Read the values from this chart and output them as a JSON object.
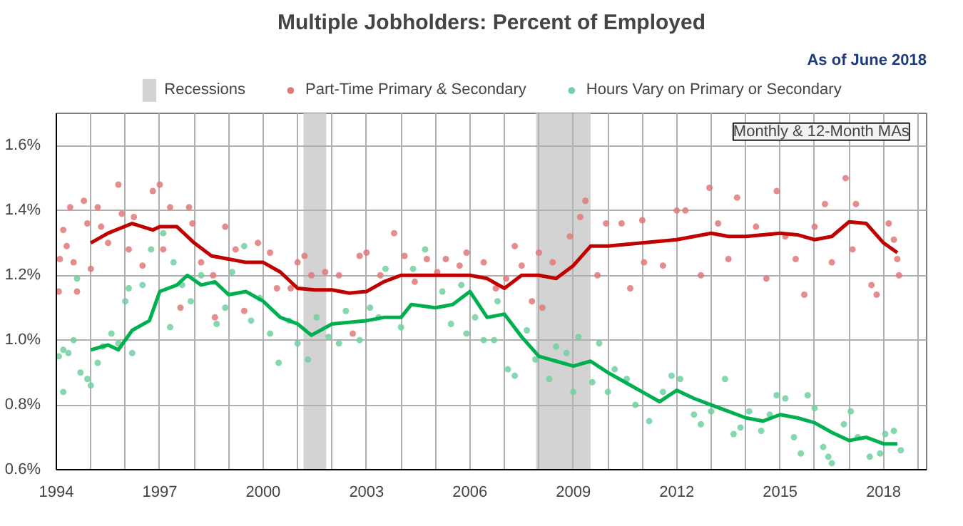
{
  "chart_data": {
    "type": "scatter",
    "title": "Multiple Jobholders: Percent of Employed",
    "annotations": [
      "As of June 2018",
      "Monthly & 12-Month MAs"
    ],
    "xlim": [
      1994,
      2019.25
    ],
    "ylim": [
      0.6,
      1.7
    ],
    "xticks": [
      1994,
      {
        "value": 1995,
        "label": null
      },
      {
        "value": 1996,
        "label": null
      },
      1997,
      {
        "value": 1998,
        "label": null
      },
      {
        "value": 1999,
        "label": null
      },
      2000,
      {
        "value": 2001,
        "label": null
      },
      {
        "value": 2002,
        "label": null
      },
      2003,
      {
        "value": 2004,
        "label": null
      },
      {
        "value": 2005,
        "label": null
      },
      2006,
      {
        "value": 2007,
        "label": null
      },
      {
        "value": 2008,
        "label": null
      },
      2009,
      {
        "value": 2010,
        "label": null
      },
      {
        "value": 2011,
        "label": null
      },
      2012,
      {
        "value": 2013,
        "label": null
      },
      {
        "value": 2014,
        "label": null
      },
      2015,
      {
        "value": 2016,
        "label": null
      },
      {
        "value": 2017,
        "label": null
      },
      2018,
      {
        "value": 2019,
        "label": null
      }
    ],
    "yticks": [
      {
        "value": 0.6,
        "label": "0.6%"
      },
      {
        "value": 0.8,
        "label": "0.8%"
      },
      {
        "value": 1.0,
        "label": "1.0%"
      },
      {
        "value": 1.2,
        "label": "1.2%"
      },
      {
        "value": 1.4,
        "label": "1.4%"
      },
      {
        "value": 1.6,
        "label": "1.6%"
      }
    ],
    "grid": true,
    "legend": "top",
    "bands": [
      {
        "axis": "x",
        "from": 2001.17,
        "to": 2001.83,
        "label": "Recessions",
        "color": "#d3d3d3"
      },
      {
        "axis": "x",
        "from": 2007.92,
        "to": 2009.5,
        "label": null,
        "color": "#d3d3d3"
      }
    ],
    "series": [
      {
        "type": "scatter",
        "marker": "circle",
        "name": "Part-Time Primary & Secondary",
        "color": "#e07878",
        "x": [
          1994.07,
          1994.1,
          1994.2,
          1994.3,
          1994.4,
          1994.5,
          1994.6,
          1994.8,
          1994.9,
          1995.0,
          1995.2,
          1995.3,
          1995.5,
          1995.8,
          1995.9,
          1996.1,
          1996.25,
          1996.5,
          1996.8,
          1997.0,
          1997.1,
          1997.3,
          1997.6,
          1997.85,
          1997.95,
          1998.2,
          1998.55,
          1998.6,
          1998.9,
          1999.2,
          1999.45,
          1999.85,
          2000.2,
          2000.4,
          2000.8,
          2001.0,
          2001.2,
          2001.4,
          2001.8,
          2002.2,
          2002.6,
          2002.8,
          2003.0,
          2003.4,
          2003.8,
          2004.1,
          2004.4,
          2004.75,
          2005.05,
          2005.3,
          2005.7,
          2005.9,
          2006.4,
          2006.75,
          2007.05,
          2007.3,
          2007.5,
          2007.8,
          2008.0,
          2008.1,
          2008.4,
          2008.9,
          2009.2,
          2009.35,
          2009.7,
          2009.95,
          2010.4,
          2010.65,
          2011.0,
          2011.05,
          2011.6,
          2012.0,
          2012.25,
          2012.7,
          2012.95,
          2013.2,
          2013.5,
          2013.75,
          2014.3,
          2014.6,
          2014.9,
          2015.15,
          2015.45,
          2015.7,
          2016.0,
          2016.3,
          2016.5,
          2016.9,
          2017.1,
          2017.2,
          2017.65,
          2017.8,
          2018.15,
          2018.3,
          2018.4,
          2018.45
        ],
        "values": [
          1.15,
          1.25,
          1.34,
          1.29,
          1.41,
          1.24,
          1.15,
          1.43,
          1.36,
          1.22,
          1.41,
          1.35,
          1.3,
          1.48,
          1.39,
          1.28,
          1.38,
          1.23,
          1.46,
          1.48,
          1.28,
          1.41,
          1.1,
          1.41,
          1.36,
          1.24,
          1.2,
          1.07,
          1.35,
          1.28,
          1.09,
          1.3,
          1.27,
          1.16,
          1.16,
          1.24,
          1.26,
          1.2,
          1.21,
          1.2,
          1.02,
          1.26,
          1.27,
          1.2,
          1.33,
          1.26,
          1.18,
          1.25,
          1.21,
          1.25,
          1.23,
          1.27,
          1.24,
          1.16,
          1.19,
          1.29,
          1.23,
          1.12,
          1.27,
          1.1,
          1.24,
          1.32,
          1.38,
          1.43,
          1.2,
          1.36,
          1.36,
          1.16,
          1.37,
          1.24,
          1.23,
          1.4,
          1.4,
          1.2,
          1.47,
          1.36,
          1.25,
          1.44,
          1.35,
          1.19,
          1.46,
          1.32,
          1.25,
          1.14,
          1.35,
          1.42,
          1.24,
          1.5,
          1.28,
          1.42,
          1.17,
          1.14,
          1.36,
          1.31,
          1.25,
          1.2
        ]
      },
      {
        "type": "line",
        "marker": "none",
        "color": "#c00000",
        "x": [
          1995.0,
          1995.5,
          1996.2,
          1996.8,
          1997.0,
          1997.5,
          1998.0,
          1998.5,
          1999.0,
          1999.5,
          2000.0,
          2000.5,
          2001.0,
          2001.5,
          2002.0,
          2002.5,
          2003.0,
          2003.5,
          2004.0,
          2005.0,
          2006.0,
          2006.5,
          2007.0,
          2007.5,
          2008.0,
          2008.5,
          2009.0,
          2009.5,
          2010.0,
          2011.0,
          2012.0,
          2012.5,
          2013.0,
          2013.5,
          2014.0,
          2014.5,
          2015.0,
          2015.5,
          2016.0,
          2016.5,
          2017.0,
          2017.5,
          2018.0,
          2018.4
        ],
        "values": [
          1.3,
          1.33,
          1.36,
          1.34,
          1.35,
          1.35,
          1.3,
          1.26,
          1.25,
          1.24,
          1.24,
          1.21,
          1.16,
          1.155,
          1.155,
          1.145,
          1.15,
          1.18,
          1.2,
          1.2,
          1.2,
          1.19,
          1.16,
          1.2,
          1.2,
          1.19,
          1.23,
          1.29,
          1.29,
          1.3,
          1.31,
          1.32,
          1.33,
          1.32,
          1.32,
          1.325,
          1.33,
          1.325,
          1.31,
          1.32,
          1.365,
          1.36,
          1.3,
          1.27
        ]
      },
      {
        "type": "scatter",
        "marker": "circle",
        "name": "Hours Vary on Primary or Secondary",
        "color": "#70d0a0",
        "x": [
          1994.07,
          1994.2,
          1994.2,
          1994.35,
          1994.5,
          1994.6,
          1994.7,
          1994.9,
          1995.0,
          1995.2,
          1995.35,
          1995.6,
          1995.8,
          1996.0,
          1996.1,
          1996.2,
          1996.5,
          1996.75,
          1997.1,
          1997.3,
          1997.4,
          1997.65,
          1997.9,
          1998.2,
          1998.65,
          1998.9,
          1999.1,
          1999.45,
          1999.65,
          1999.9,
          2000.2,
          2000.45,
          2000.75,
          2001.0,
          2001.3,
          2001.55,
          2001.9,
          2002.2,
          2002.4,
          2002.8,
          2003.1,
          2003.35,
          2003.55,
          2004.0,
          2004.35,
          2004.7,
          2005.2,
          2005.45,
          2005.75,
          2005.9,
          2006.15,
          2006.4,
          2006.7,
          2006.8,
          2007.1,
          2007.3,
          2007.65,
          2007.9,
          2008.3,
          2008.5,
          2008.8,
          2009.0,
          2009.15,
          2009.55,
          2009.75,
          2010.0,
          2010.2,
          2010.55,
          2010.8,
          2011.2,
          2011.6,
          2011.85,
          2012.1,
          2012.5,
          2012.7,
          2013.0,
          2013.4,
          2013.65,
          2013.85,
          2014.1,
          2014.45,
          2014.7,
          2014.9,
          2015.15,
          2015.4,
          2015.6,
          2015.8,
          2016.0,
          2016.25,
          2016.4,
          2016.5,
          2016.85,
          2017.05,
          2017.25,
          2017.6,
          2017.9,
          2018.05,
          2018.3,
          2018.5
        ],
        "values": [
          0.95,
          0.97,
          0.84,
          0.96,
          1.0,
          1.19,
          0.9,
          0.88,
          0.86,
          0.93,
          0.98,
          1.02,
          0.99,
          1.12,
          1.16,
          0.96,
          1.17,
          1.28,
          1.33,
          1.04,
          1.24,
          1.17,
          1.12,
          1.2,
          1.05,
          1.1,
          1.21,
          1.29,
          1.06,
          1.13,
          1.02,
          0.93,
          1.06,
          0.99,
          0.94,
          1.07,
          1.01,
          0.99,
          1.09,
          1.0,
          1.1,
          1.07,
          1.22,
          1.04,
          1.22,
          1.28,
          1.15,
          1.05,
          1.17,
          1.02,
          1.07,
          1.0,
          1.0,
          1.12,
          0.91,
          0.89,
          1.03,
          0.94,
          0.88,
          0.98,
          0.96,
          0.84,
          1.01,
          0.87,
          0.99,
          0.84,
          0.91,
          0.88,
          0.8,
          0.75,
          0.84,
          0.89,
          0.88,
          0.77,
          0.74,
          0.78,
          0.88,
          0.71,
          0.73,
          0.78,
          0.72,
          0.77,
          0.83,
          0.82,
          0.7,
          0.65,
          0.83,
          0.79,
          0.67,
          0.64,
          0.62,
          0.74,
          0.78,
          0.7,
          0.64,
          0.65,
          0.71,
          0.72,
          0.66
        ]
      },
      {
        "type": "line",
        "marker": "none",
        "color": "#00b050",
        "x": [
          1995.0,
          1995.5,
          1995.8,
          1996.2,
          1996.7,
          1997.0,
          1997.5,
          1997.8,
          1998.2,
          1998.6,
          1999.0,
          1999.5,
          2000.0,
          2000.5,
          2001.0,
          2001.4,
          2002.0,
          2003.0,
          2003.5,
          2004.0,
          2004.3,
          2005.0,
          2005.5,
          2006.0,
          2006.5,
          2007.0,
          2007.5,
          2008.0,
          2008.5,
          2009.0,
          2009.5,
          2010.0,
          2010.5,
          2011.0,
          2011.5,
          2012.0,
          2012.5,
          2013.0,
          2013.5,
          2014.0,
          2014.5,
          2015.0,
          2015.5,
          2016.0,
          2016.5,
          2017.0,
          2017.5,
          2018.0,
          2018.4
        ],
        "values": [
          0.97,
          0.985,
          0.97,
          1.03,
          1.06,
          1.15,
          1.17,
          1.2,
          1.17,
          1.18,
          1.14,
          1.15,
          1.12,
          1.07,
          1.05,
          1.015,
          1.05,
          1.06,
          1.07,
          1.07,
          1.11,
          1.1,
          1.11,
          1.15,
          1.07,
          1.08,
          1.01,
          0.95,
          0.935,
          0.92,
          0.935,
          0.9,
          0.87,
          0.84,
          0.81,
          0.845,
          0.82,
          0.8,
          0.78,
          0.76,
          0.75,
          0.77,
          0.76,
          0.745,
          0.715,
          0.69,
          0.7,
          0.68,
          0.68
        ]
      }
    ]
  }
}
